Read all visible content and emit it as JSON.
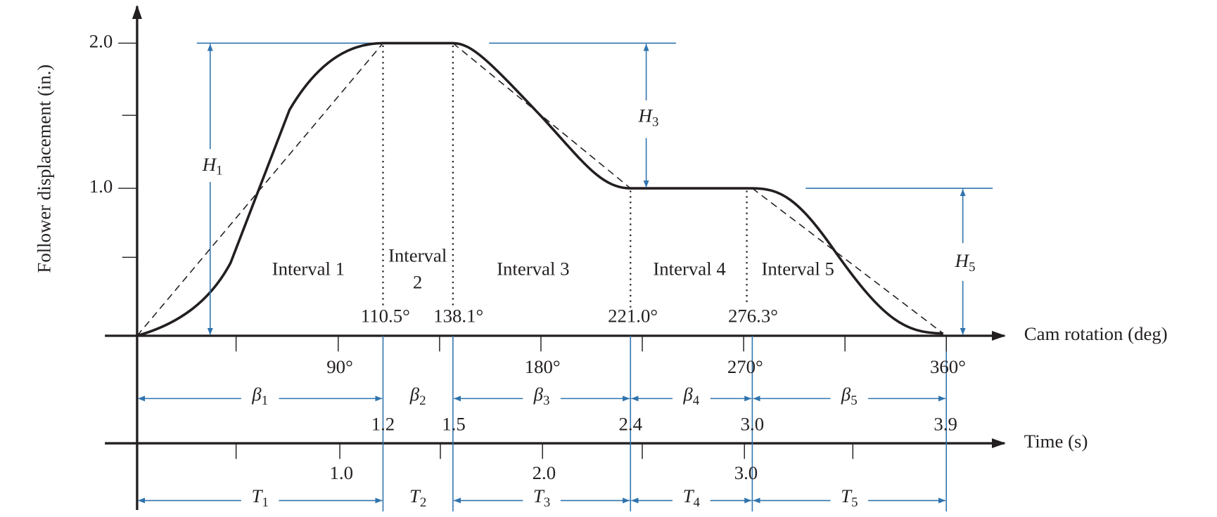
{
  "y_axis": {
    "label": "Follower displacement (in.)",
    "ticks": [
      "2.0",
      "1.0"
    ]
  },
  "cam_axis": {
    "label": "Cam rotation (deg)",
    "ticks": [
      "90°",
      "180°",
      "270°",
      "360°"
    ]
  },
  "time_axis": {
    "label": "Time (s)",
    "ticks": [
      "1.0",
      "2.0",
      "3.0"
    ]
  },
  "intervals": [
    {
      "lines": [
        "Interval 1"
      ]
    },
    {
      "lines": [
        "Interval",
        "2"
      ]
    },
    {
      "lines": [
        "Interval 3"
      ]
    },
    {
      "lines": [
        "Interval 4"
      ]
    },
    {
      "lines": [
        "Interval 5"
      ]
    }
  ],
  "boundary_angles": [
    "110.5°",
    "138.1°",
    "221.0°",
    "276.3°"
  ],
  "boundary_times": [
    "1.2",
    "1.5",
    "2.4",
    "3.0",
    "3.9"
  ],
  "rises": [
    {
      "symbol": "H",
      "sub": "1"
    },
    {
      "symbol": "H",
      "sub": "3"
    },
    {
      "symbol": "H",
      "sub": "5"
    }
  ],
  "betas": [
    {
      "symbol": "β",
      "sub": "1"
    },
    {
      "symbol": "β",
      "sub": "2"
    },
    {
      "symbol": "β",
      "sub": "3"
    },
    {
      "symbol": "β",
      "sub": "4"
    },
    {
      "symbol": "β",
      "sub": "5"
    }
  ],
  "periods": [
    {
      "symbol": "T",
      "sub": "1"
    },
    {
      "symbol": "T",
      "sub": "2"
    },
    {
      "symbol": "T",
      "sub": "3"
    },
    {
      "symbol": "T",
      "sub": "4"
    },
    {
      "symbol": "T",
      "sub": "5"
    }
  ]
}
